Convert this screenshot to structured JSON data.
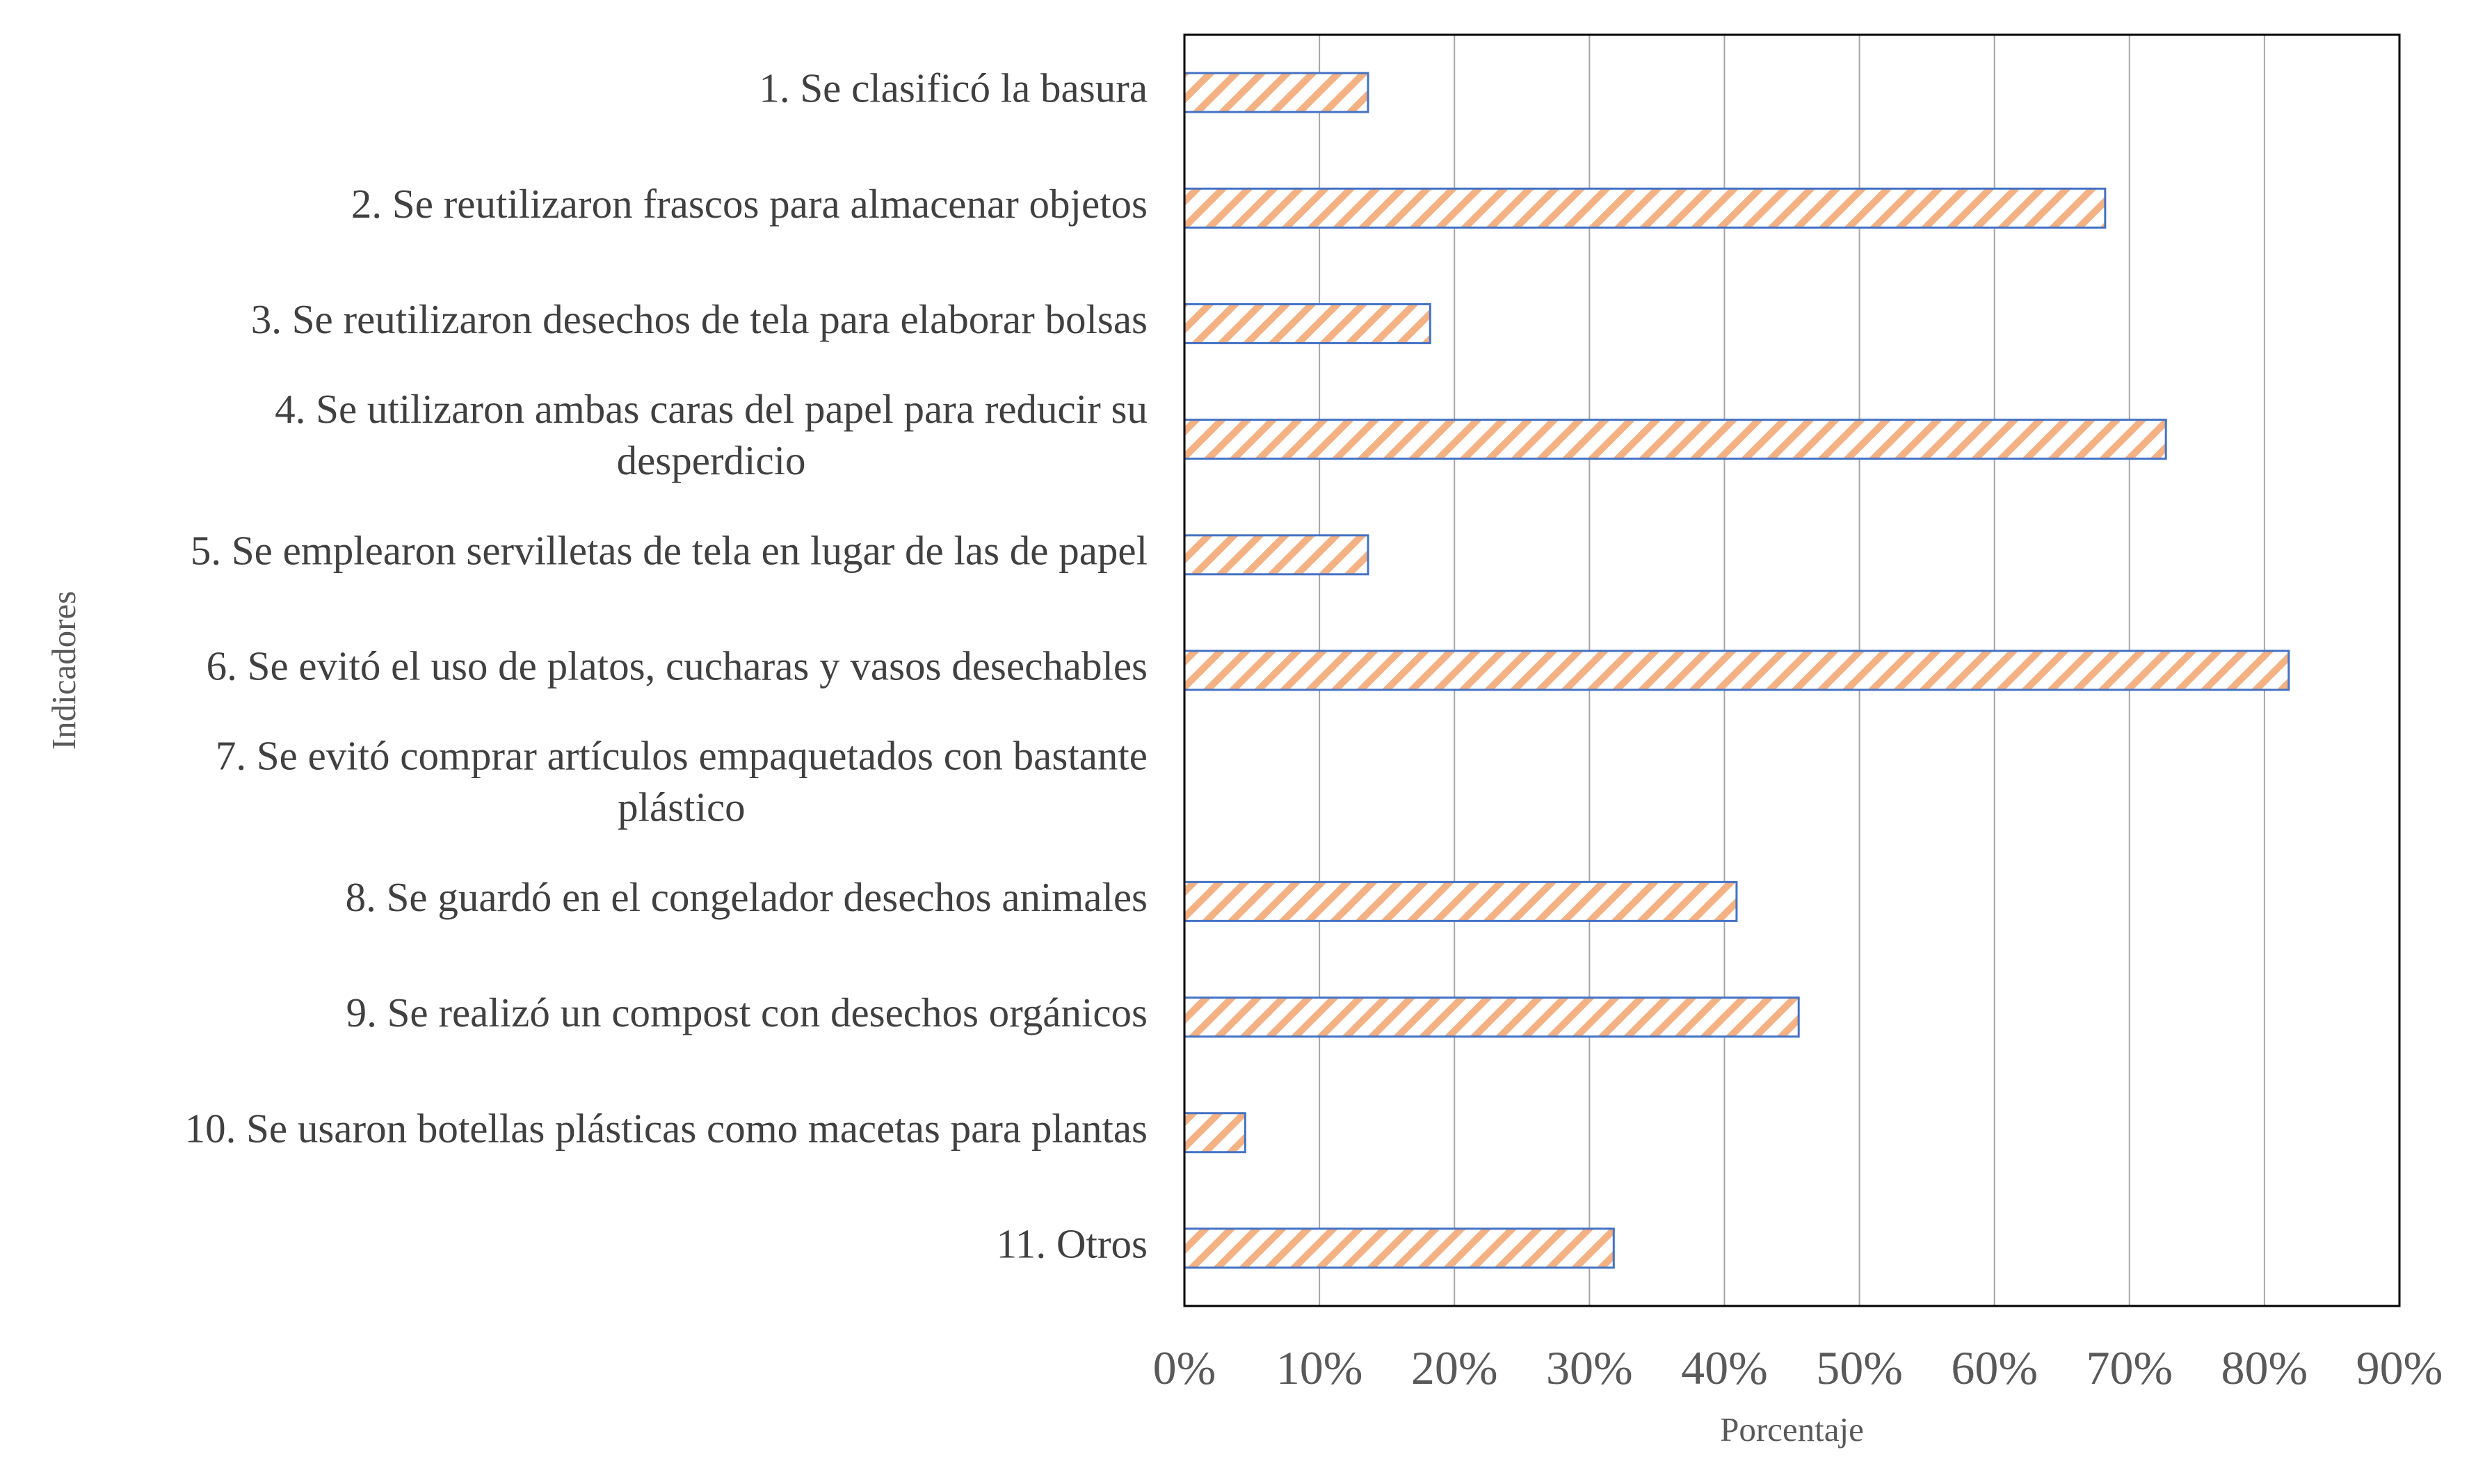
{
  "chart_data": {
    "type": "bar",
    "orientation": "horizontal",
    "title": "",
    "xlabel": "Porcentaje",
    "ylabel": "Indicadores",
    "categories": [
      "1. Se clasificó la basura",
      "2. Se reutilizaron frascos para almacenar objetos",
      "3. Se reutilizaron desechos de tela para elaborar bolsas",
      "4. Se utilizaron ambas caras del papel para reducir su desperdicio",
      "5. Se emplearon servilletas de tela en lugar de las de papel",
      "6. Se evitó el uso de platos, cucharas y vasos desechables",
      "7. Se evitó comprar artículos empaquetados con bastante plástico",
      "8. Se guardó en el congelador desechos animales",
      "9. Se realizó un compost con desechos orgánicos",
      "10. Se usaron botellas plásticas como macetas para plantas",
      "11. Otros"
    ],
    "category_lines": [
      [
        "1. Se clasificó la basura"
      ],
      [
        "2. Se reutilizaron frascos para almacenar objetos"
      ],
      [
        "3. Se reutilizaron desechos de tela para elaborar bolsas"
      ],
      [
        "4. Se utilizaron ambas caras del papel para reducir su",
        "desperdicio"
      ],
      [
        "5. Se emplearon servilletas de tela en lugar de las de papel"
      ],
      [
        "6. Se evitó el uso de platos, cucharas y vasos desechables"
      ],
      [
        "7. Se evitó comprar artículos empaquetados con bastante",
        "plástico"
      ],
      [
        "8. Se guardó en el congelador desechos animales"
      ],
      [
        "9. Se realizó un compost con desechos orgánicos"
      ],
      [
        "10. Se usaron botellas plásticas como macetas para plantas"
      ],
      [
        "11. Otros"
      ]
    ],
    "values": [
      13.6,
      68.2,
      18.2,
      72.7,
      13.6,
      81.8,
      0,
      40.9,
      45.5,
      4.5,
      31.8
    ],
    "xlim": [
      0,
      90
    ],
    "xticks": [
      0,
      10,
      20,
      30,
      40,
      50,
      60,
      70,
      80,
      90
    ],
    "xtick_labels": [
      "0%",
      "10%",
      "20%",
      "30%",
      "40%",
      "50%",
      "60%",
      "70%",
      "80%",
      "90%"
    ],
    "grid": true,
    "legend": "none",
    "colors": {
      "bar_hatch": "#f4b183",
      "bar_outline": "#4472c4",
      "gridline": "#a6a6a6",
      "plot_border": "#000000",
      "category_text": "#404040",
      "axis_text": "#595959"
    }
  }
}
